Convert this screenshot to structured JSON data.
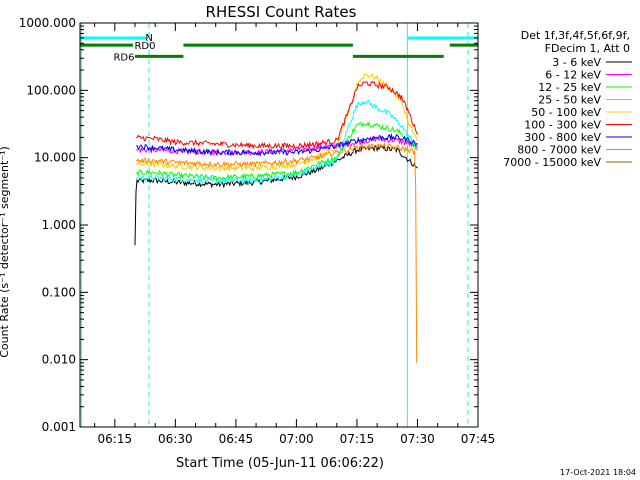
{
  "chart_data": {
    "type": "line",
    "title": "RHESSI Count Rates",
    "xlabel": "Start Time (05-Jun-11 06:06:22)",
    "ylabel": "Count Rate (s⁻¹ detector⁻¹ segment⁻¹)",
    "y_scale": "log",
    "ylim": [
      0.001,
      1000
    ],
    "xlim_minutes": [
      6.37,
      105.0
    ],
    "x_ticks": [
      {
        "minute": 15,
        "label": "06:15"
      },
      {
        "minute": 30,
        "label": "06:30"
      },
      {
        "minute": 45,
        "label": "06:45"
      },
      {
        "minute": 60,
        "label": "07:00"
      },
      {
        "minute": 75,
        "label": "07:15"
      },
      {
        "minute": 90,
        "label": "07:30"
      },
      {
        "minute": 105,
        "label": "07:45"
      }
    ],
    "y_ticks": [
      {
        "value": 0.001,
        "label": "0.001"
      },
      {
        "value": 0.01,
        "label": "0.010"
      },
      {
        "value": 0.1,
        "label": "0.100"
      },
      {
        "value": 1,
        "label": "1.000"
      },
      {
        "value": 10,
        "label": "10.000"
      },
      {
        "value": 100,
        "label": "100.000"
      },
      {
        "value": 1000,
        "label": "1000.000"
      }
    ],
    "legend_header": [
      "Det 1f,3f,4f,5f,6f,9f,",
      "FDecim 1, Att 0"
    ],
    "series": [
      {
        "name": "3 - 6 keV",
        "color": "#000000",
        "points": [
          [
            20,
            0.5
          ],
          [
            20.3,
            4.5
          ],
          [
            25,
            4.6
          ],
          [
            30,
            4.3
          ],
          [
            40,
            4.0
          ],
          [
            50,
            4.3
          ],
          [
            60,
            5.2
          ],
          [
            65,
            6.5
          ],
          [
            70,
            9
          ],
          [
            75,
            13
          ],
          [
            80,
            14
          ],
          [
            85,
            13
          ],
          [
            88,
            9
          ],
          [
            90,
            7
          ]
        ]
      },
      {
        "name": "6 - 12 keV",
        "color": "#ff00ff",
        "points": [
          [
            20.3,
            13
          ],
          [
            25,
            13
          ],
          [
            30,
            12.5
          ],
          [
            40,
            12
          ],
          [
            50,
            12
          ],
          [
            60,
            13
          ],
          [
            65,
            14
          ],
          [
            70,
            15
          ],
          [
            75,
            17
          ],
          [
            80,
            19
          ],
          [
            85,
            18
          ],
          [
            88,
            16
          ],
          [
            90,
            14
          ]
        ]
      },
      {
        "name": "12 - 25 keV",
        "color": "#00ff00",
        "points": [
          [
            20.3,
            6
          ],
          [
            25,
            6
          ],
          [
            30,
            5.5
          ],
          [
            40,
            5
          ],
          [
            50,
            5.3
          ],
          [
            60,
            6
          ],
          [
            65,
            8
          ],
          [
            70,
            10
          ],
          [
            73,
            20
          ],
          [
            75,
            30
          ],
          [
            77,
            33
          ],
          [
            80,
            30
          ],
          [
            85,
            25
          ],
          [
            88,
            18
          ],
          [
            90,
            13
          ]
        ]
      },
      {
        "name": "25 - 50 keV",
        "color": "#00ffff",
        "points": [
          [
            20.3,
            5
          ],
          [
            25,
            5
          ],
          [
            30,
            4.8
          ],
          [
            40,
            4.5
          ],
          [
            50,
            4.6
          ],
          [
            60,
            5.5
          ],
          [
            65,
            7
          ],
          [
            70,
            9
          ],
          [
            73,
            30
          ],
          [
            75,
            60
          ],
          [
            77,
            70
          ],
          [
            80,
            55
          ],
          [
            83,
            45
          ],
          [
            86,
            30
          ],
          [
            88,
            20
          ],
          [
            90,
            15
          ]
        ]
      },
      {
        "name": "50 - 100 keV",
        "color": "#ffcc00",
        "points": [
          [
            20.3,
            8
          ],
          [
            25,
            8
          ],
          [
            30,
            7.5
          ],
          [
            40,
            7
          ],
          [
            50,
            7
          ],
          [
            60,
            8
          ],
          [
            65,
            10
          ],
          [
            70,
            14
          ],
          [
            73,
            50
          ],
          [
            75,
            120
          ],
          [
            77,
            175
          ],
          [
            80,
            150
          ],
          [
            83,
            110
          ],
          [
            86,
            70
          ],
          [
            88,
            30
          ],
          [
            90,
            18
          ]
        ]
      },
      {
        "name": "100 - 300 keV",
        "color": "#ff0000",
        "points": [
          [
            20.3,
            20
          ],
          [
            25,
            19
          ],
          [
            30,
            17
          ],
          [
            40,
            16
          ],
          [
            50,
            15
          ],
          [
            60,
            15
          ],
          [
            65,
            16
          ],
          [
            70,
            18
          ],
          [
            73,
            50
          ],
          [
            75,
            110
          ],
          [
            77,
            130
          ],
          [
            80,
            120
          ],
          [
            83,
            110
          ],
          [
            86,
            80
          ],
          [
            88,
            45
          ],
          [
            90,
            22
          ]
        ]
      },
      {
        "name": "300 - 800 keV",
        "color": "#0000ff",
        "points": [
          [
            20.3,
            15
          ],
          [
            25,
            14
          ],
          [
            30,
            13
          ],
          [
            40,
            12
          ],
          [
            50,
            12
          ],
          [
            60,
            12
          ],
          [
            65,
            13
          ],
          [
            70,
            15
          ],
          [
            75,
            18
          ],
          [
            80,
            20
          ],
          [
            85,
            20
          ],
          [
            88,
            18
          ],
          [
            90,
            16
          ]
        ]
      },
      {
        "name": "800 - 7000 keV",
        "color": "#ff8800",
        "points": [
          [
            20.3,
            9
          ],
          [
            25,
            9
          ],
          [
            30,
            8.5
          ],
          [
            40,
            8
          ],
          [
            50,
            8
          ],
          [
            60,
            9
          ],
          [
            65,
            10
          ],
          [
            70,
            12
          ],
          [
            75,
            14
          ],
          [
            80,
            15
          ],
          [
            85,
            14
          ],
          [
            88,
            13
          ],
          [
            89.5,
            12
          ],
          [
            89.8,
            0.009
          ]
        ]
      },
      {
        "name": "7000 - 15000 keV",
        "color": "#8b6914",
        "points": []
      }
    ],
    "attenuator_bars": [
      {
        "label": "N",
        "color": "#00ffff",
        "level": 600,
        "segments": [
          [
            6.37,
            23
          ],
          [
            87.5,
            105
          ]
        ]
      },
      {
        "label": "RD0",
        "color": "#008000",
        "level": 470,
        "segments": [
          [
            6.37,
            19.5
          ],
          [
            32,
            74
          ],
          [
            98,
            105
          ]
        ]
      },
      {
        "label": "RD6",
        "color": "#008000",
        "level": 320,
        "segments": [
          [
            20,
            32
          ],
          [
            74,
            96.5
          ]
        ]
      }
    ],
    "vertical_markers": [
      {
        "minute": 23.5,
        "color": "#00ffff",
        "style": "dashed"
      },
      {
        "minute": 87.5,
        "color": "#00ffff",
        "style": "solid"
      },
      {
        "minute": 102.5,
        "color": "#00ffff",
        "style": "dashed"
      },
      {
        "minute": 6.7,
        "color": "#00ffff",
        "style": "solid"
      }
    ]
  },
  "footer": {
    "timestamp": "17-Oct-2021 18:04"
  }
}
